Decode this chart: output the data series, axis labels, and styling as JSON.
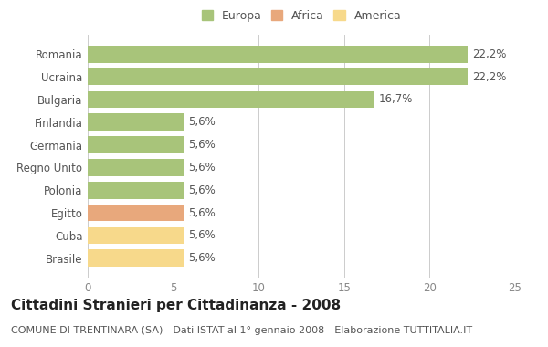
{
  "categories": [
    "Brasile",
    "Cuba",
    "Egitto",
    "Polonia",
    "Regno Unito",
    "Germania",
    "Finlandia",
    "Bulgaria",
    "Ucraina",
    "Romania"
  ],
  "values": [
    5.6,
    5.6,
    5.6,
    5.6,
    5.6,
    5.6,
    5.6,
    16.7,
    22.2,
    22.2
  ],
  "bar_colors": [
    "#f7d98b",
    "#f7d98b",
    "#e8a87c",
    "#a8c47a",
    "#a8c47a",
    "#a8c47a",
    "#a8c47a",
    "#a8c47a",
    "#a8c47a",
    "#a8c47a"
  ],
  "labels": [
    "5,6%",
    "5,6%",
    "5,6%",
    "5,6%",
    "5,6%",
    "5,6%",
    "5,6%",
    "16,7%",
    "22,2%",
    "22,2%"
  ],
  "title": "Cittadini Stranieri per Cittadinanza - 2008",
  "subtitle": "COMUNE DI TRENTINARA (SA) - Dati ISTAT al 1° gennaio 2008 - Elaborazione TUTTITALIA.IT",
  "xlim": [
    0,
    25
  ],
  "xticks": [
    0,
    5,
    10,
    15,
    20,
    25
  ],
  "legend": [
    {
      "label": "Europa",
      "color": "#a8c47a"
    },
    {
      "label": "Africa",
      "color": "#e8a87c"
    },
    {
      "label": "America",
      "color": "#f7d98b"
    }
  ],
  "background_color": "#ffffff",
  "grid_color": "#cccccc",
  "bar_height": 0.75,
  "label_fontsize": 8.5,
  "title_fontsize": 11,
  "subtitle_fontsize": 8,
  "tick_fontsize": 8.5,
  "legend_fontsize": 9,
  "ytick_color": "#555555",
  "xtick_color": "#888888",
  "label_color": "#555555"
}
